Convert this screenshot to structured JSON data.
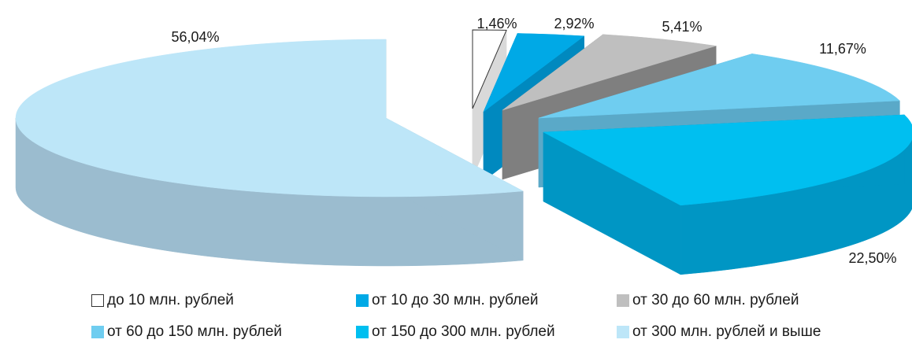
{
  "chart_data": {
    "type": "pie",
    "style": "3d-exploded",
    "title": "",
    "slices": [
      {
        "label": "до 10 млн. рублей",
        "value": 1.46,
        "display": "1,46%",
        "color": "#ffffff",
        "side": "#d9d9d9"
      },
      {
        "label": "от 10 до 30 млн. рублей",
        "value": 2.92,
        "display": "2,92%",
        "color": "#00a9e6",
        "side": "#0089bf"
      },
      {
        "label": "от 30 до 60 млн. рублей",
        "value": 5.41,
        "display": "5,41%",
        "color": "#bfbfbf",
        "side": "#7f7f7f"
      },
      {
        "label": "от 60 до 150 млн. рублей",
        "value": 11.67,
        "display": "11,67%",
        "color": "#6fcdf0",
        "side": "#5aa9c8"
      },
      {
        "label": "от 150 до 300 млн. рублей",
        "value": 22.5,
        "display": "22,50%",
        "color": "#00bff0",
        "side": "#0096c4"
      },
      {
        "label": "от 300 млн. рублей и выше",
        "value": 56.04,
        "display": "56,04%",
        "color": "#bde6f8",
        "side": "#9bbccf"
      }
    ],
    "legend_position": "bottom"
  }
}
